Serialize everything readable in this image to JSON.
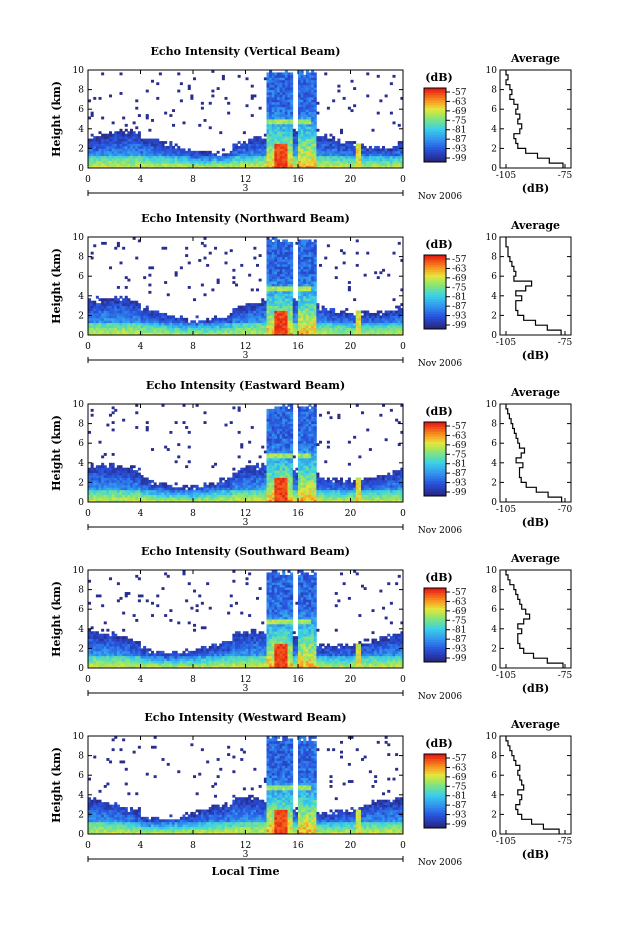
{
  "chart_data": [
    {
      "type": "heatmap",
      "title": "Echo Intensity (Vertical Beam)",
      "ylabel": "Height (km)",
      "xticks": [
        "0",
        "4",
        "8",
        "12",
        "16",
        "20",
        "0"
      ],
      "yticks": [
        "0",
        "2",
        "4",
        "6",
        "8",
        "10"
      ],
      "day_marker": "3",
      "date_label": "Nov 2006",
      "colorbar_label": "(dB)",
      "colorbar_ticks": [
        "-57",
        "-63",
        "-69",
        "-75",
        "-81",
        "-87",
        "-93",
        "-99"
      ],
      "xlim": [
        0,
        24
      ],
      "ylim": [
        0,
        10
      ],
      "avg_profile": {
        "title": "Average",
        "xlabel": "(dB)",
        "xticks": [
          "-105",
          "-75"
        ],
        "yticks": [
          "0",
          "2",
          "4",
          "6",
          "8",
          "10"
        ],
        "height_km": [
          0,
          0.5,
          1,
          1.5,
          2,
          2.5,
          3,
          3.5,
          4,
          4.5,
          5,
          5.5,
          6,
          6.5,
          7,
          7.5,
          8,
          8.5,
          9,
          9.5
        ],
        "db": [
          -76,
          -83,
          -89,
          -95,
          -99,
          -100,
          -101,
          -98,
          -97,
          -99,
          -98,
          -100,
          -99,
          -101,
          -103,
          -102,
          -103,
          -105,
          -104,
          -105
        ]
      }
    },
    {
      "type": "heatmap",
      "title": "Echo Intensity (Northward Beam)",
      "ylabel": "Height (km)",
      "xticks": [
        "0",
        "4",
        "8",
        "12",
        "16",
        "20",
        "0"
      ],
      "yticks": [
        "0",
        "2",
        "4",
        "6",
        "8",
        "10"
      ],
      "day_marker": "3",
      "date_label": "Nov 2006",
      "colorbar_label": "(dB)",
      "colorbar_ticks": [
        "-57",
        "-63",
        "-69",
        "-75",
        "-81",
        "-87",
        "-93",
        "-99"
      ],
      "xlim": [
        0,
        24
      ],
      "ylim": [
        0,
        10
      ],
      "avg_profile": {
        "title": "Average",
        "xlabel": "(dB)",
        "xticks": [
          "-105",
          "-75"
        ],
        "yticks": [
          "0",
          "2",
          "4",
          "6",
          "8",
          "10"
        ],
        "height_km": [
          0,
          0.5,
          1,
          1.5,
          2,
          2.5,
          3,
          3.5,
          4,
          4.5,
          5,
          5.5,
          6,
          6.5,
          7,
          7.5,
          8,
          8.5,
          9,
          9.5
        ],
        "db": [
          -77,
          -84,
          -90,
          -96,
          -99,
          -100,
          -100,
          -97,
          -100,
          -95,
          -92,
          -101,
          -100,
          -101,
          -102,
          -103,
          -104,
          -104,
          -105,
          -105
        ]
      }
    },
    {
      "type": "heatmap",
      "title": "Echo Intensity (Eastward Beam)",
      "ylabel": "Height (km)",
      "xticks": [
        "0",
        "4",
        "8",
        "12",
        "16",
        "20",
        "0"
      ],
      "yticks": [
        "0",
        "2",
        "4",
        "6",
        "8",
        "10"
      ],
      "day_marker": "3",
      "date_label": "Nov 2006",
      "colorbar_label": "(dB)",
      "colorbar_ticks": [
        "-57",
        "-63",
        "-69",
        "-75",
        "-81",
        "-87",
        "-93",
        "-99"
      ],
      "xlim": [
        0,
        24
      ],
      "ylim": [
        0,
        10
      ],
      "avg_profile": {
        "title": "Average",
        "xlabel": "(dB)",
        "xticks": [
          "-105",
          "-70"
        ],
        "yticks": [
          "0",
          "2",
          "4",
          "6",
          "8",
          "10"
        ],
        "height_km": [
          0,
          0.5,
          1,
          1.5,
          2,
          2.5,
          3,
          3.5,
          4,
          4.5,
          5,
          5.5,
          6,
          6.5,
          7,
          7.5,
          8,
          8.5,
          9,
          9.5
        ],
        "db": [
          -72,
          -80,
          -87,
          -93,
          -96,
          -97,
          -97,
          -95,
          -99,
          -96,
          -94,
          -97,
          -98,
          -99,
          -100,
          -101,
          -102,
          -103,
          -104,
          -105
        ]
      }
    },
    {
      "type": "heatmap",
      "title": "Echo Intensity (Southward Beam)",
      "ylabel": "Height (km)",
      "xticks": [
        "0",
        "4",
        "8",
        "12",
        "16",
        "20",
        "0"
      ],
      "yticks": [
        "0",
        "2",
        "4",
        "6",
        "8",
        "10"
      ],
      "day_marker": "3",
      "date_label": "Nov 2006",
      "colorbar_label": "(dB)",
      "colorbar_ticks": [
        "-57",
        "-63",
        "-69",
        "-75",
        "-81",
        "-87",
        "-93",
        "-99"
      ],
      "xlim": [
        0,
        24
      ],
      "ylim": [
        0,
        10
      ],
      "avg_profile": {
        "title": "Average",
        "xlabel": "(dB)",
        "xticks": [
          "-105",
          "-75"
        ],
        "yticks": [
          "0",
          "2",
          "4",
          "6",
          "8",
          "10"
        ],
        "height_km": [
          0,
          0.5,
          1,
          1.5,
          2,
          2.5,
          3,
          3.5,
          4,
          4.5,
          5,
          5.5,
          6,
          6.5,
          7,
          7.5,
          8,
          8.5,
          9,
          9.5
        ],
        "db": [
          -76,
          -84,
          -91,
          -96,
          -98,
          -99,
          -99,
          -97,
          -99,
          -96,
          -93,
          -95,
          -97,
          -98,
          -99,
          -100,
          -101,
          -103,
          -104,
          -105
        ]
      }
    },
    {
      "type": "heatmap",
      "title": "Echo Intensity (Westward Beam)",
      "ylabel": "Height (km)",
      "xlabel": "Local Time",
      "xticks": [
        "0",
        "4",
        "8",
        "12",
        "16",
        "20",
        "0"
      ],
      "yticks": [
        "0",
        "2",
        "4",
        "6",
        "8",
        "10"
      ],
      "day_marker": "3",
      "date_label": "Nov 2006",
      "colorbar_label": "(dB)",
      "colorbar_ticks": [
        "-57",
        "-63",
        "-69",
        "-75",
        "-81",
        "-87",
        "-93",
        "-99"
      ],
      "xlim": [
        0,
        24
      ],
      "ylim": [
        0,
        10
      ],
      "avg_profile": {
        "title": "Average",
        "xlabel": "(dB)",
        "xticks": [
          "-105",
          "-75"
        ],
        "yticks": [
          "0",
          "2",
          "4",
          "6",
          "8",
          "10"
        ],
        "height_km": [
          0,
          0.5,
          1,
          1.5,
          2,
          2.5,
          3,
          3.5,
          4,
          4.5,
          5,
          5.5,
          6,
          6.5,
          7,
          7.5,
          8,
          8.5,
          9,
          9.5
        ],
        "db": [
          -78,
          -86,
          -92,
          -97,
          -99,
          -100,
          -98,
          -97,
          -99,
          -96,
          -97,
          -98,
          -99,
          -98,
          -100,
          -101,
          -102,
          -103,
          -104,
          -105
        ]
      }
    }
  ]
}
